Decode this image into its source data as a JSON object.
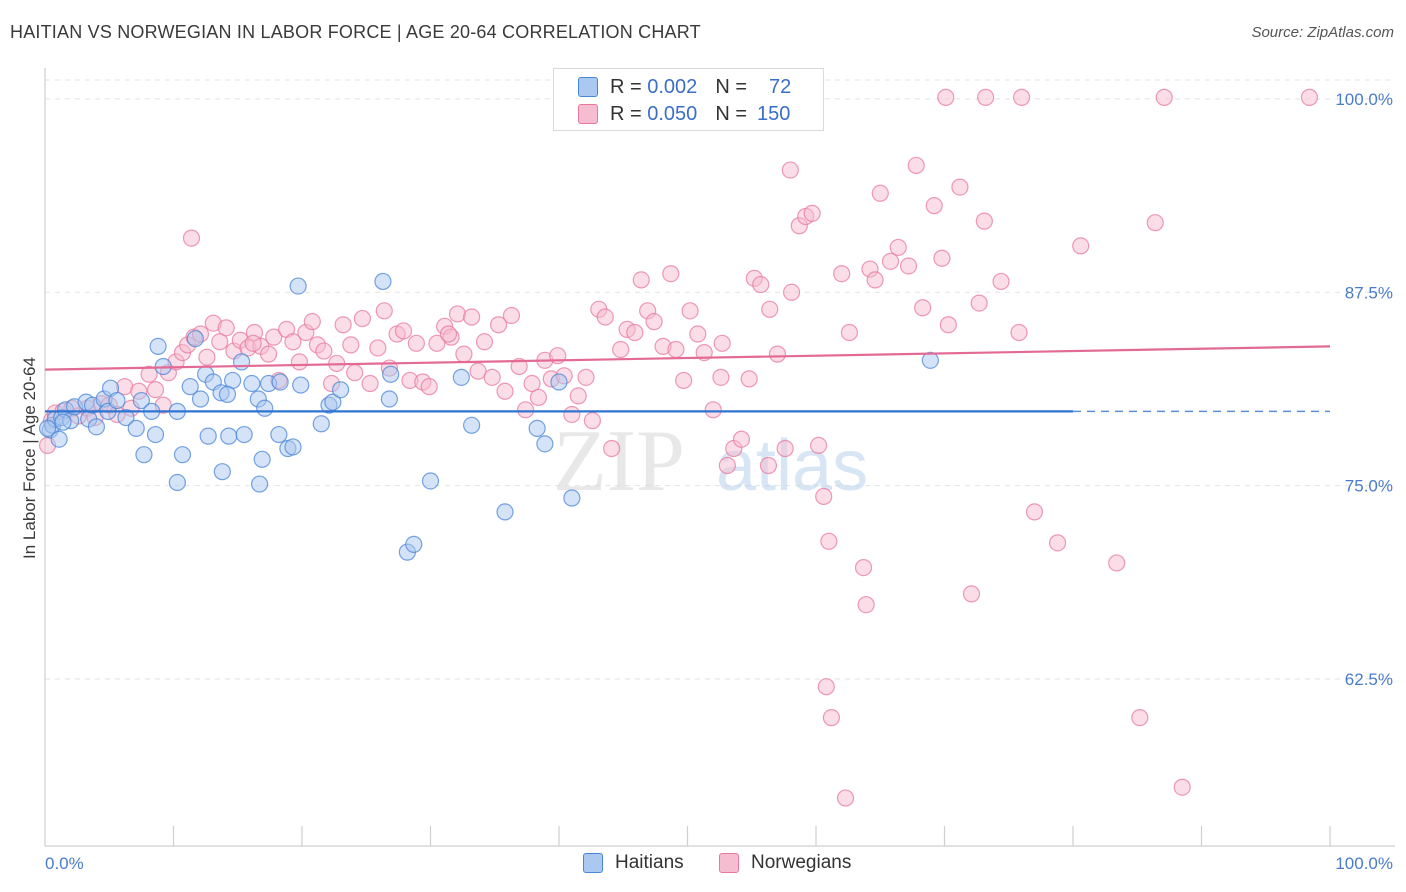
{
  "header": {
    "title": "HAITIAN VS NORWEGIAN IN LABOR FORCE | AGE 20-64 CORRELATION CHART",
    "source": "Source: ZipAtlas.com"
  },
  "watermark": {
    "zip": "ZIP",
    "atlas": "atlas"
  },
  "legend": {
    "rows": [
      {
        "r_label": "R =",
        "r_value": "0.002",
        "n_label": "N =",
        "n_value": "72"
      },
      {
        "r_label": "R =",
        "r_value": "0.050",
        "n_label": "N =",
        "n_value": "150"
      }
    ]
  },
  "bottom_legend": {
    "series1": "Haitians",
    "series2": "Norwegians"
  },
  "colors": {
    "haitian_fill": "#aac8f0",
    "haitian_stroke": "#4a86d8",
    "haitian_line": "#2f74d0",
    "norwegian_fill": "#f6bcd0",
    "norwegian_stroke": "#e8789e",
    "norwegian_line": "#e26a95",
    "tick_text": "#4a7cc9",
    "grid": "#e2e2e2"
  },
  "chart_data": {
    "type": "scatter",
    "title": "HAITIAN VS NORWEGIAN IN LABOR FORCE | AGE 20-64 CORRELATION CHART",
    "xlabel": "",
    "ylabel": "In Labor Force | Age 20-64",
    "xlim": [
      0,
      100
    ],
    "ylim": [
      51.7,
      102.0
    ],
    "x_tick_labels": [
      "0.0%",
      "100.0%"
    ],
    "y_ticks": [
      62.5,
      75.0,
      87.5,
      100.0
    ],
    "y_tick_labels": [
      "62.5%",
      "75.0%",
      "87.5%",
      "100.0%"
    ],
    "grid": true,
    "legend_position": "top-center",
    "series": [
      {
        "name": "Haitians",
        "r": 0.002,
        "n": 72,
        "trend": {
          "x": [
            0,
            80
          ],
          "y": [
            79.8,
            79.8
          ],
          "dashed_to": 100
        },
        "points": [
          [
            0.4,
            78.6
          ],
          [
            0.6,
            78.9
          ],
          [
            0.8,
            79.3
          ],
          [
            1.1,
            78.0
          ],
          [
            1.3,
            79.4
          ],
          [
            1.6,
            79.9
          ],
          [
            2.0,
            79.2
          ],
          [
            2.3,
            80.1
          ],
          [
            3.2,
            80.4
          ],
          [
            3.4,
            79.3
          ],
          [
            3.7,
            80.2
          ],
          [
            4.0,
            78.8
          ],
          [
            4.6,
            80.6
          ],
          [
            4.9,
            79.8
          ],
          [
            5.1,
            81.3
          ],
          [
            5.6,
            80.5
          ],
          [
            6.3,
            79.4
          ],
          [
            7.5,
            80.5
          ],
          [
            8.3,
            79.8
          ],
          [
            7.1,
            78.7
          ],
          [
            8.6,
            78.3
          ],
          [
            7.7,
            77.0
          ],
          [
            9.2,
            82.7
          ],
          [
            8.8,
            84.0
          ],
          [
            10.3,
            79.8
          ],
          [
            10.7,
            77.0
          ],
          [
            11.3,
            81.4
          ],
          [
            12.1,
            80.6
          ],
          [
            12.5,
            82.2
          ],
          [
            13.1,
            81.7
          ],
          [
            14.6,
            81.8
          ],
          [
            13.7,
            81.0
          ],
          [
            14.2,
            80.9
          ],
          [
            15.3,
            83.0
          ],
          [
            16.1,
            81.6
          ],
          [
            16.6,
            80.6
          ],
          [
            17.4,
            81.6
          ],
          [
            17.1,
            80.0
          ],
          [
            12.7,
            78.2
          ],
          [
            14.3,
            78.2
          ],
          [
            15.5,
            78.3
          ],
          [
            16.9,
            76.7
          ],
          [
            18.2,
            78.3
          ],
          [
            18.9,
            77.4
          ],
          [
            19.3,
            77.5
          ],
          [
            18.3,
            81.7
          ],
          [
            19.9,
            81.5
          ],
          [
            21.5,
            79.0
          ],
          [
            22.1,
            80.2
          ],
          [
            22.4,
            80.4
          ],
          [
            23.0,
            81.2
          ],
          [
            26.9,
            82.2
          ],
          [
            30.0,
            75.3
          ],
          [
            32.4,
            82.0
          ],
          [
            33.2,
            78.9
          ],
          [
            38.3,
            78.7
          ],
          [
            38.9,
            77.7
          ],
          [
            40.0,
            81.7
          ],
          [
            41.0,
            74.2
          ],
          [
            10.3,
            75.2
          ],
          [
            13.8,
            75.9
          ],
          [
            16.7,
            75.1
          ],
          [
            19.7,
            87.9
          ],
          [
            26.3,
            88.2
          ],
          [
            26.8,
            80.6
          ],
          [
            35.8,
            73.3
          ],
          [
            28.2,
            70.7
          ],
          [
            28.7,
            71.2
          ],
          [
            68.9,
            83.1
          ],
          [
            11.7,
            84.5
          ],
          [
            0.2,
            78.7
          ],
          [
            1.4,
            79.1
          ]
        ]
      },
      {
        "name": "Norwegians",
        "r": 0.05,
        "n": 150,
        "trend": {
          "x": [
            0,
            100
          ],
          "y": [
            82.5,
            84.0
          ]
        },
        "points": [
          [
            0.2,
            77.6
          ],
          [
            0.5,
            79.2
          ],
          [
            0.8,
            79.7
          ],
          [
            1.4,
            79.8
          ],
          [
            2.1,
            80.0
          ],
          [
            2.6,
            79.5
          ],
          [
            3.3,
            80.0
          ],
          [
            3.9,
            79.4
          ],
          [
            4.4,
            80.3
          ],
          [
            5.0,
            80.2
          ],
          [
            5.6,
            79.6
          ],
          [
            6.2,
            81.4
          ],
          [
            6.7,
            80.0
          ],
          [
            7.3,
            81.1
          ],
          [
            8.1,
            82.2
          ],
          [
            8.6,
            81.2
          ],
          [
            9.2,
            80.2
          ],
          [
            9.6,
            82.3
          ],
          [
            10.2,
            83.0
          ],
          [
            10.7,
            83.6
          ],
          [
            11.1,
            84.1
          ],
          [
            11.6,
            84.6
          ],
          [
            12.1,
            84.8
          ],
          [
            12.6,
            83.3
          ],
          [
            13.1,
            85.5
          ],
          [
            13.6,
            84.3
          ],
          [
            14.1,
            85.2
          ],
          [
            14.7,
            83.7
          ],
          [
            15.2,
            84.4
          ],
          [
            15.8,
            83.9
          ],
          [
            16.3,
            84.9
          ],
          [
            16.8,
            84.0
          ],
          [
            17.4,
            83.5
          ],
          [
            17.8,
            84.6
          ],
          [
            18.2,
            81.8
          ],
          [
            18.8,
            85.1
          ],
          [
            19.3,
            84.3
          ],
          [
            19.8,
            83.0
          ],
          [
            20.3,
            84.9
          ],
          [
            20.8,
            85.6
          ],
          [
            21.2,
            84.1
          ],
          [
            21.7,
            83.7
          ],
          [
            22.3,
            81.6
          ],
          [
            22.7,
            82.9
          ],
          [
            23.2,
            85.4
          ],
          [
            23.8,
            84.1
          ],
          [
            24.1,
            82.3
          ],
          [
            24.7,
            85.8
          ],
          [
            25.3,
            81.6
          ],
          [
            25.9,
            83.9
          ],
          [
            26.4,
            86.3
          ],
          [
            26.8,
            82.6
          ],
          [
            27.4,
            84.8
          ],
          [
            27.9,
            85.0
          ],
          [
            28.4,
            81.8
          ],
          [
            28.9,
            84.2
          ],
          [
            29.4,
            81.7
          ],
          [
            29.9,
            81.4
          ],
          [
            30.5,
            84.2
          ],
          [
            31.1,
            85.3
          ],
          [
            31.6,
            84.6
          ],
          [
            32.1,
            86.1
          ],
          [
            32.6,
            83.5
          ],
          [
            33.2,
            85.9
          ],
          [
            33.7,
            82.4
          ],
          [
            34.2,
            84.3
          ],
          [
            34.8,
            82.0
          ],
          [
            35.3,
            85.4
          ],
          [
            35.8,
            81.1
          ],
          [
            36.3,
            86.0
          ],
          [
            36.9,
            82.7
          ],
          [
            37.4,
            79.9
          ],
          [
            37.9,
            81.6
          ],
          [
            38.4,
            80.7
          ],
          [
            38.9,
            83.1
          ],
          [
            39.4,
            81.9
          ],
          [
            39.9,
            83.4
          ],
          [
            40.4,
            82.1
          ],
          [
            41.0,
            79.6
          ],
          [
            41.5,
            80.8
          ],
          [
            42.1,
            82.0
          ],
          [
            42.6,
            79.2
          ],
          [
            43.1,
            86.4
          ],
          [
            43.6,
            85.9
          ],
          [
            44.1,
            77.4
          ],
          [
            44.8,
            83.8
          ],
          [
            45.3,
            85.1
          ],
          [
            45.9,
            84.9
          ],
          [
            46.4,
            88.3
          ],
          [
            46.9,
            86.3
          ],
          [
            47.4,
            85.6
          ],
          [
            48.1,
            84.0
          ],
          [
            48.7,
            88.7
          ],
          [
            49.1,
            83.8
          ],
          [
            49.7,
            81.8
          ],
          [
            50.2,
            86.3
          ],
          [
            50.8,
            84.8
          ],
          [
            51.3,
            83.6
          ],
          [
            52.0,
            79.9
          ],
          [
            52.6,
            82.0
          ],
          [
            53.1,
            76.3
          ],
          [
            53.6,
            77.4
          ],
          [
            54.2,
            78.0
          ],
          [
            54.8,
            81.9
          ],
          [
            55.2,
            88.4
          ],
          [
            55.7,
            88.0
          ],
          [
            56.4,
            86.4
          ],
          [
            57.0,
            83.5
          ],
          [
            57.6,
            77.4
          ],
          [
            58.1,
            87.5
          ],
          [
            58.7,
            91.8
          ],
          [
            59.2,
            92.4
          ],
          [
            59.7,
            92.6
          ],
          [
            58.0,
            95.4
          ],
          [
            60.2,
            77.6
          ],
          [
            60.6,
            74.3
          ],
          [
            61.0,
            71.4
          ],
          [
            62.0,
            88.7
          ],
          [
            62.6,
            84.9
          ],
          [
            63.7,
            69.7
          ],
          [
            64.2,
            89.0
          ],
          [
            64.6,
            88.3
          ],
          [
            65.0,
            93.9
          ],
          [
            65.8,
            89.5
          ],
          [
            66.4,
            90.4
          ],
          [
            67.2,
            89.2
          ],
          [
            67.8,
            95.7
          ],
          [
            68.3,
            86.5
          ],
          [
            69.2,
            93.1
          ],
          [
            69.8,
            89.7
          ],
          [
            70.3,
            85.4
          ],
          [
            71.2,
            94.3
          ],
          [
            72.1,
            68.0
          ],
          [
            72.7,
            86.8
          ],
          [
            73.1,
            92.1
          ],
          [
            74.4,
            88.2
          ],
          [
            75.8,
            84.9
          ],
          [
            77.0,
            73.3
          ],
          [
            78.8,
            71.3
          ],
          [
            80.6,
            90.5
          ],
          [
            83.4,
            70.0
          ],
          [
            85.2,
            60.0
          ],
          [
            86.4,
            92.0
          ],
          [
            88.5,
            55.5
          ],
          [
            76.0,
            100.1
          ],
          [
            70.1,
            100.1
          ],
          [
            87.1,
            100.1
          ],
          [
            98.4,
            100.1
          ],
          [
            63.9,
            67.3
          ],
          [
            61.2,
            60.0
          ],
          [
            60.8,
            62.0
          ],
          [
            62.3,
            54.8
          ],
          [
            73.2,
            100.1
          ],
          [
            11.4,
            91.0
          ],
          [
            56.3,
            76.3
          ],
          [
            31.4,
            84.8
          ],
          [
            16.2,
            84.2
          ],
          [
            52.7,
            84.2
          ]
        ]
      }
    ]
  }
}
